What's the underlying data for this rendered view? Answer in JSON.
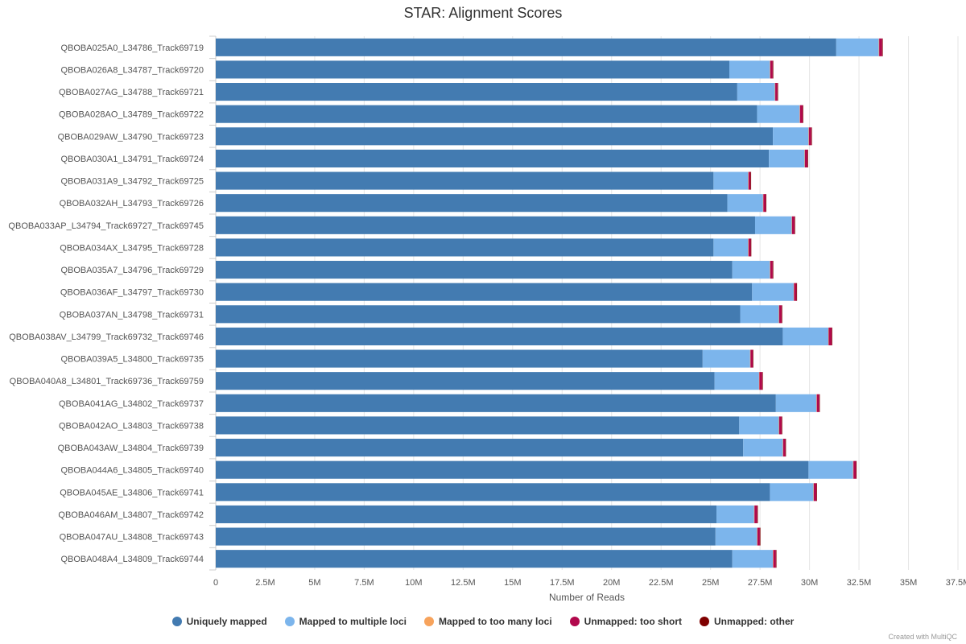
{
  "chart_data": {
    "type": "bar",
    "orientation": "horizontal",
    "stacked": true,
    "title": "STAR: Alignment Scores",
    "xlabel": "Number of Reads",
    "ylabel": "",
    "xlim": [
      0,
      37500000
    ],
    "x_ticks": [
      0,
      2500000,
      5000000,
      7500000,
      10000000,
      12500000,
      15000000,
      17500000,
      20000000,
      22500000,
      25000000,
      27500000,
      30000000,
      32500000,
      35000000,
      37500000
    ],
    "x_tick_labels": [
      "0",
      "2.5M",
      "5M",
      "7.5M",
      "10M",
      "12.5M",
      "15M",
      "17.5M",
      "20M",
      "22.5M",
      "25M",
      "27.5M",
      "30M",
      "32.5M",
      "35M",
      "37.5M"
    ],
    "grid": true,
    "legend_position": "bottom",
    "categories": [
      "QBOBA025A0_L34786_Track69719",
      "QBOBA026A8_L34787_Track69720",
      "QBOBA027AG_L34788_Track69721",
      "QBOBA028AO_L34789_Track69722",
      "QBOBA029AW_L34790_Track69723",
      "QBOBA030A1_L34791_Track69724",
      "QBOBA031A9_L34792_Track69725",
      "QBOBA032AH_L34793_Track69726",
      "QBOBA033AP_L34794_Track69727_Track69745",
      "QBOBA034AX_L34795_Track69728",
      "QBOBA035A7_L34796_Track69729",
      "QBOBA036AF_L34797_Track69730",
      "QBOBA037AN_L34798_Track69731",
      "QBOBA038AV_L34799_Track69732_Track69746",
      "QBOBA039A5_L34800_Track69735",
      "QBOBA040A8_L34801_Track69736_Track69759",
      "QBOBA041AG_L34802_Track69737",
      "QBOBA042AO_L34803_Track69738",
      "QBOBA043AW_L34804_Track69739",
      "QBOBA044A6_L34805_Track69740",
      "QBOBA045AE_L34806_Track69741",
      "QBOBA046AM_L34807_Track69742",
      "QBOBA047AU_L34808_Track69743",
      "QBOBA048A4_L34809_Track69744"
    ],
    "series": [
      {
        "name": "Uniquely mapped",
        "color": "#437bb1",
        "values": [
          31350000,
          25950000,
          26350000,
          27350000,
          28150000,
          27950000,
          25150000,
          25850000,
          27250000,
          25150000,
          26100000,
          27100000,
          26500000,
          28650000,
          24600000,
          25200000,
          28300000,
          26450000,
          26650000,
          29950000,
          28000000,
          25300000,
          25250000,
          26100000
        ]
      },
      {
        "name": "Mapped to multiple loci",
        "color": "#7cb5ec",
        "values": [
          2150000,
          2050000,
          1900000,
          2150000,
          1800000,
          1800000,
          1750000,
          1800000,
          1850000,
          1750000,
          1900000,
          2100000,
          1950000,
          2300000,
          2400000,
          2250000,
          2050000,
          2000000,
          2000000,
          2250000,
          2200000,
          1900000,
          2100000,
          2050000
        ]
      },
      {
        "name": "Mapped to too many loci",
        "color": "#f7a35c",
        "values": [
          20000,
          20000,
          20000,
          20000,
          20000,
          20000,
          20000,
          20000,
          20000,
          20000,
          20000,
          20000,
          20000,
          20000,
          20000,
          20000,
          20000,
          20000,
          20000,
          20000,
          20000,
          20000,
          20000,
          20000
        ]
      },
      {
        "name": "Unmapped: too short",
        "color": "#b1084c",
        "values": [
          150000,
          120000,
          110000,
          130000,
          120000,
          130000,
          100000,
          120000,
          120000,
          110000,
          120000,
          120000,
          120000,
          150000,
          110000,
          140000,
          120000,
          120000,
          110000,
          130000,
          130000,
          140000,
          120000,
          130000
        ]
      },
      {
        "name": "Unmapped: other",
        "color": "#7f0000",
        "values": [
          30000,
          30000,
          30000,
          30000,
          30000,
          30000,
          30000,
          30000,
          30000,
          30000,
          30000,
          30000,
          30000,
          30000,
          30000,
          30000,
          30000,
          30000,
          30000,
          30000,
          30000,
          30000,
          30000,
          30000
        ]
      }
    ]
  },
  "credit": "Created with MultiQC"
}
